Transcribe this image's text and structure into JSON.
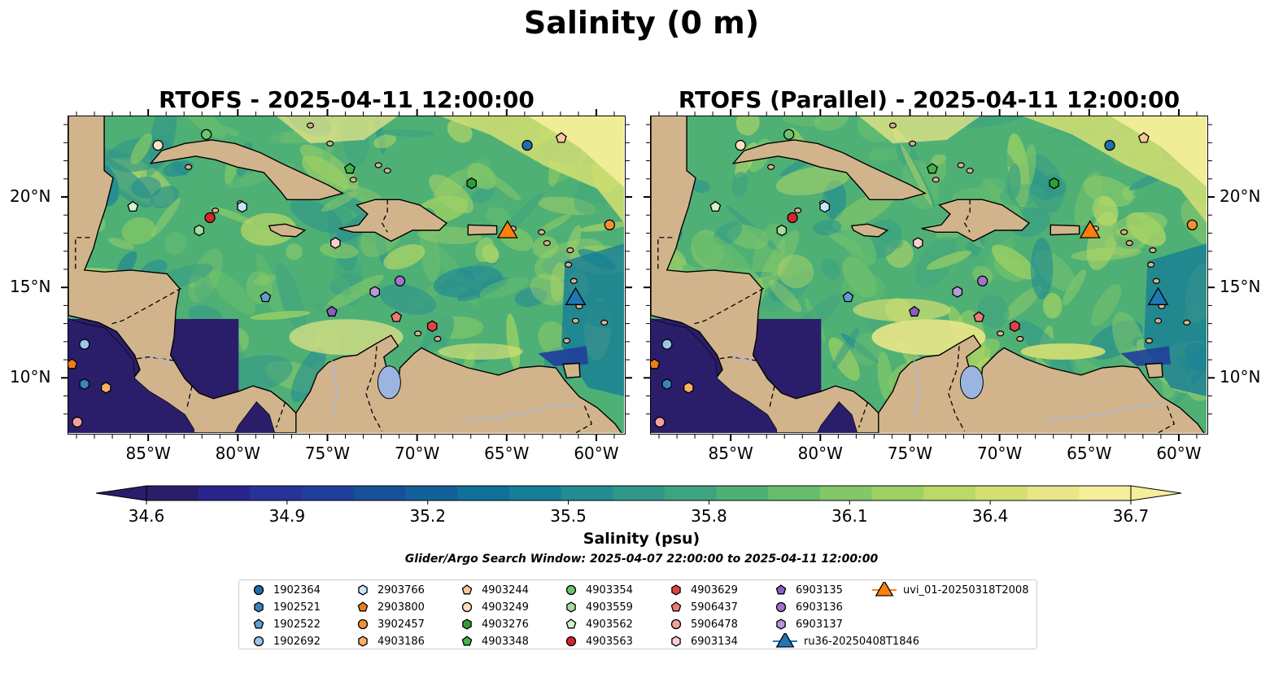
{
  "suptitle": "Salinity (0 m)",
  "panels": [
    {
      "title": "RTOFS - 2025-04-11 12:00:00",
      "variant": "rtofs"
    },
    {
      "title": "RTOFS (Parallel) - 2025-04-11 12:00:00",
      "variant": "parallel"
    }
  ],
  "axes": {
    "lon_ticks": [
      "85°W",
      "80°W",
      "75°W",
      "70°W",
      "65°W",
      "60°W"
    ],
    "lat_ticks": [
      "20°N",
      "15°N",
      "10°N"
    ],
    "lon_range": [
      -89.5,
      -58.5
    ],
    "lat_range": [
      7,
      24.5
    ]
  },
  "colorbar": {
    "label": "Salinity (psu)",
    "ticks": [
      "34.6",
      "34.9",
      "35.2",
      "35.5",
      "35.8",
      "36.1",
      "36.4",
      "36.7"
    ],
    "range": [
      34.6,
      36.7
    ],
    "colormap": "haline",
    "colors": [
      "#2a1e6b",
      "#29258a",
      "#273399",
      "#1f3f9b",
      "#17509a",
      "#12619a",
      "#10709a",
      "#167e97",
      "#238b92",
      "#309789",
      "#3ea47f",
      "#4fb076",
      "#66bd6e",
      "#82c768",
      "#9ed164",
      "#bbd965",
      "#d4df72",
      "#e8e688",
      "#f5ee9b"
    ]
  },
  "search_window": "Glider/Argo Search Window: 2025-04-07 22:00:00 to 2025-04-11 12:00:00",
  "legend": [
    {
      "label": "1902364",
      "marker": "circle",
      "color": "#1f6fae"
    },
    {
      "label": "1902521",
      "marker": "hexagon",
      "color": "#3a83bf"
    },
    {
      "label": "1902522",
      "marker": "pentagon",
      "color": "#5e9fd0"
    },
    {
      "label": "1902692",
      "marker": "circle",
      "color": "#9cc5e8"
    },
    {
      "label": "2903766",
      "marker": "hexagon",
      "color": "#c6e6f8"
    },
    {
      "label": "2903800",
      "marker": "pentagon",
      "color": "#ef7d17"
    },
    {
      "label": "3902457",
      "marker": "circle",
      "color": "#f39133"
    },
    {
      "label": "4903186",
      "marker": "hexagon",
      "color": "#f7b065"
    },
    {
      "label": "4903244",
      "marker": "pentagon",
      "color": "#f9c99d"
    },
    {
      "label": "4903249",
      "marker": "circle",
      "color": "#fde0c2"
    },
    {
      "label": "4903276",
      "marker": "hexagon",
      "color": "#2e9e38"
    },
    {
      "label": "4903348",
      "marker": "pentagon",
      "color": "#44b24b"
    },
    {
      "label": "4903354",
      "marker": "circle",
      "color": "#6cc56e"
    },
    {
      "label": "4903559",
      "marker": "hexagon",
      "color": "#a3dd9c"
    },
    {
      "label": "4903562",
      "marker": "pentagon",
      "color": "#d5f2c7"
    },
    {
      "label": "4903563",
      "marker": "circle",
      "color": "#d6262a"
    },
    {
      "label": "4903629",
      "marker": "hexagon",
      "color": "#e04345"
    },
    {
      "label": "5906437",
      "marker": "pentagon",
      "color": "#ee7a78"
    },
    {
      "label": "5906478",
      "marker": "circle",
      "color": "#f4a2a0"
    },
    {
      "label": "6903134",
      "marker": "hexagon",
      "color": "#fbcfd0"
    },
    {
      "label": "6903135",
      "marker": "pentagon",
      "color": "#8c5fbe"
    },
    {
      "label": "6903136",
      "marker": "circle",
      "color": "#9f74cb"
    },
    {
      "label": "6903137",
      "marker": "hexagon",
      "color": "#b79ad8"
    },
    {
      "label": "ru36-20250408T1846",
      "marker": "triangle",
      "color": "#1f77b4"
    },
    {
      "label": "uvi_01-20250318T2008",
      "marker": "triangle",
      "color": "#ff7f0e"
    }
  ],
  "chart_data": {
    "type": "scatter",
    "title": "Salinity (0 m)",
    "xlabel": "",
    "ylabel": "",
    "xlim": [
      -89.5,
      -58.5
    ],
    "ylim": [
      7,
      24.5
    ],
    "series": [
      {
        "name": "1902364",
        "x": [
          -63.9
        ],
        "y": [
          22.9
        ]
      },
      {
        "name": "1902521",
        "x": [
          -88.6
        ],
        "y": [
          9.7
        ]
      },
      {
        "name": "1902522",
        "x": [
          -78.5
        ],
        "y": [
          14.5
        ]
      },
      {
        "name": "1902692",
        "x": [
          -88.6
        ],
        "y": [
          11.9
        ]
      },
      {
        "name": "2903766",
        "x": [
          -79.8
        ],
        "y": [
          19.5
        ]
      },
      {
        "name": "2903800",
        "x": [
          -89.3
        ],
        "y": [
          10.8
        ]
      },
      {
        "name": "3902457",
        "x": [
          -59.3
        ],
        "y": [
          18.5
        ]
      },
      {
        "name": "4903186",
        "x": [
          -87.4
        ],
        "y": [
          9.5
        ]
      },
      {
        "name": "4903244",
        "x": [
          -62.0
        ],
        "y": [
          23.3
        ]
      },
      {
        "name": "4903249",
        "x": [
          -84.5
        ],
        "y": [
          22.9
        ]
      },
      {
        "name": "4903276",
        "x": [
          -67.0
        ],
        "y": [
          20.8
        ]
      },
      {
        "name": "4903348",
        "x": [
          -73.8
        ],
        "y": [
          21.6
        ]
      },
      {
        "name": "4903354",
        "x": [
          -81.8
        ],
        "y": [
          23.5
        ]
      },
      {
        "name": "4903559",
        "x": [
          -82.2
        ],
        "y": [
          18.2
        ]
      },
      {
        "name": "4903562",
        "x": [
          -85.9
        ],
        "y": [
          19.5
        ]
      },
      {
        "name": "4903563",
        "x": [
          -81.6
        ],
        "y": [
          18.9
        ]
      },
      {
        "name": "4903629",
        "x": [
          -69.2
        ],
        "y": [
          12.9
        ]
      },
      {
        "name": "5906437",
        "x": [
          -71.2
        ],
        "y": [
          13.4
        ]
      },
      {
        "name": "5906478",
        "x": [
          -89.0
        ],
        "y": [
          7.6
        ]
      },
      {
        "name": "6903134",
        "x": [
          -74.6
        ],
        "y": [
          17.5
        ]
      },
      {
        "name": "6903135",
        "x": [
          -74.8
        ],
        "y": [
          13.7
        ]
      },
      {
        "name": "6903136",
        "x": [
          -71.0
        ],
        "y": [
          15.4
        ]
      },
      {
        "name": "6903137",
        "x": [
          -72.4
        ],
        "y": [
          14.8
        ]
      },
      {
        "name": "ru36-20250408T1846",
        "x": [
          -61.2
        ],
        "y": [
          14.4
        ]
      },
      {
        "name": "uvi_01-20250318T2008",
        "x": [
          -65.0
        ],
        "y": [
          18.1
        ]
      }
    ]
  }
}
